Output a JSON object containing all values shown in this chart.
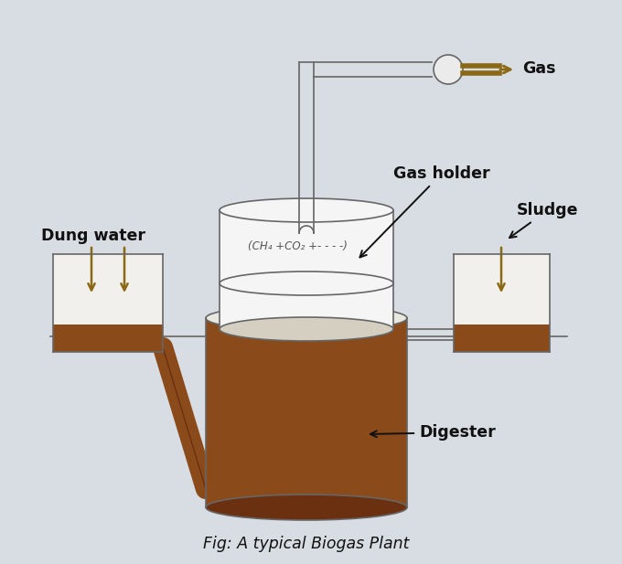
{
  "title": "Fig: A typical Biogas Plant",
  "background_color": "#d8dde3",
  "brown_fill": "#8B4A1A",
  "brown_edge": "#6B3010",
  "line_color": "#666666",
  "arrow_color": "#8B6914",
  "tank_fill": "#f0f0f0",
  "gas_holder_fill": "#f5f5f5",
  "label_gas": "Gas",
  "label_gas_holder": "Gas holder",
  "label_dung_water": "Dung water",
  "label_sludge": "Sludge",
  "label_digester": "Digester",
  "label_formula": "(CH₄ +CO₂ +- - - -)",
  "figsize": [
    6.8,
    6.17
  ],
  "dpi": 100
}
